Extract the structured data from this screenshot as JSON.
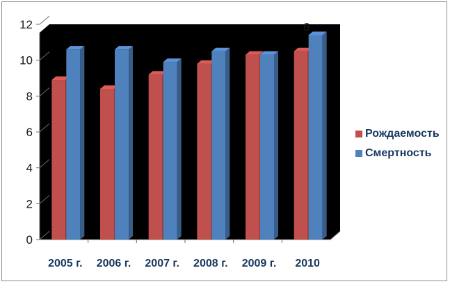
{
  "chart_data": {
    "type": "bar",
    "categories": [
      "2005 г.",
      "2006 г.",
      "2007 г.",
      "2008 г.",
      "2009 г.",
      "2010"
    ],
    "series": [
      {
        "name": "Рождаемость",
        "values": [
          8.9,
          8.4,
          9.2,
          9.8,
          10.3,
          10.5
        ],
        "color": "#c0504d"
      },
      {
        "name": "Смертность",
        "values": [
          10.6,
          10.6,
          9.9,
          10.5,
          10.3,
          11.4
        ],
        "color": "#4f81bd"
      }
    ],
    "yticks": [
      "0",
      "2",
      "4",
      "6",
      "8",
      "10",
      "12"
    ],
    "ylim": [
      0,
      12
    ],
    "grid": false,
    "legend_position": "right",
    "background": "#000000",
    "fragment_labels": [
      {
        "text": "6",
        "series": 1,
        "index": 5
      }
    ]
  }
}
